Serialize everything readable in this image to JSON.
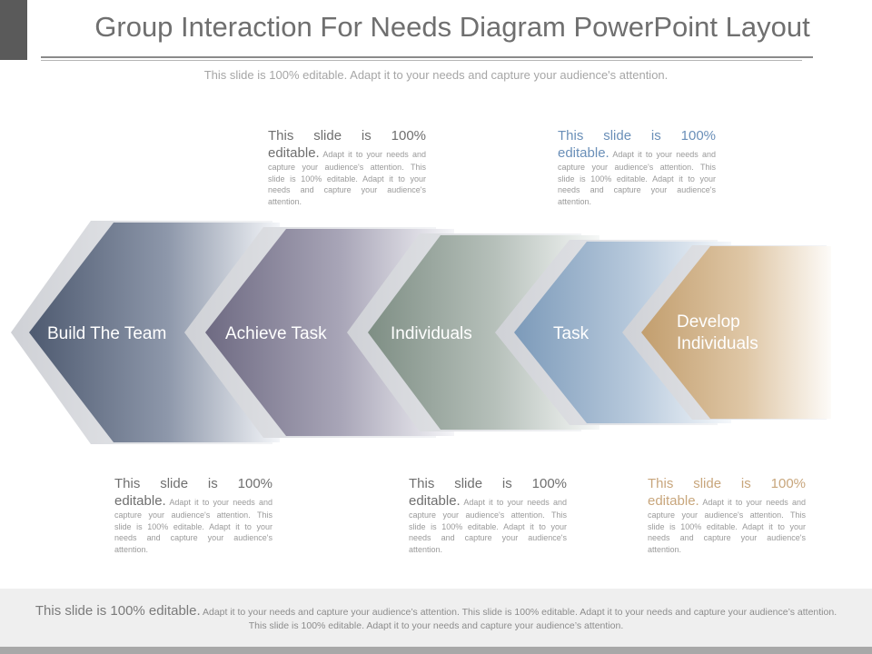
{
  "header": {
    "title": "Group Interaction For Needs Diagram PowerPoint Layout",
    "subtitle": "This slide is 100% editable. Adapt it to your needs and capture your audience's attention."
  },
  "steps": [
    {
      "label": "Build The Team",
      "color": "#4e5a70"
    },
    {
      "label": "Achieve Task",
      "color": "#6e6a82"
    },
    {
      "label": "Individuals",
      "color": "#7e8e84"
    },
    {
      "label": "Task",
      "color": "#7c9ab9"
    },
    {
      "label": "Develop Individuals",
      "color": "#c29e6e"
    }
  ],
  "text_blocks": [
    {
      "lead": "This slide is 100% editable.",
      "body": "Adapt it to your needs and capture your audience's attention. This slide is 100% editable. Adapt it to your needs and capture your audience's attention.",
      "lead_color": "#6f6f6f"
    },
    {
      "lead": "This slide is 100% editable.",
      "body": "Adapt it to your needs and capture your audience's attention. This slide is 100% editable. Adapt it to your needs and capture your audience's attention.",
      "lead_color": "#6a8fb8"
    },
    {
      "lead": "This slide is 100% editable.",
      "body": "Adapt it to your needs and capture your audience's attention. This slide is 100% editable. Adapt it to your needs and capture your audience's attention.",
      "lead_color": "#6f6f6f"
    },
    {
      "lead": "This slide is 100% editable.",
      "body": "Adapt it to your needs and capture your audience's attention. This slide is 100% editable. Adapt it to your needs and capture your audience's attention.",
      "lead_color": "#6f6f6f"
    },
    {
      "lead": "This slide is 100% editable.",
      "body": "Adapt it to your needs and capture your audience's attention. This slide is 100% editable. Adapt it to your needs and capture your audience's attention.",
      "lead_color": "#c8a67c"
    }
  ],
  "footer": {
    "lead": "This slide is 100% editable.",
    "body": "Adapt it to your needs and capture your audience’s attention. This slide is 100% editable. Adapt it to your needs and capture your audience’s attention. This slide is 100% editable. Adapt it to your needs and capture your audience’s attention."
  }
}
